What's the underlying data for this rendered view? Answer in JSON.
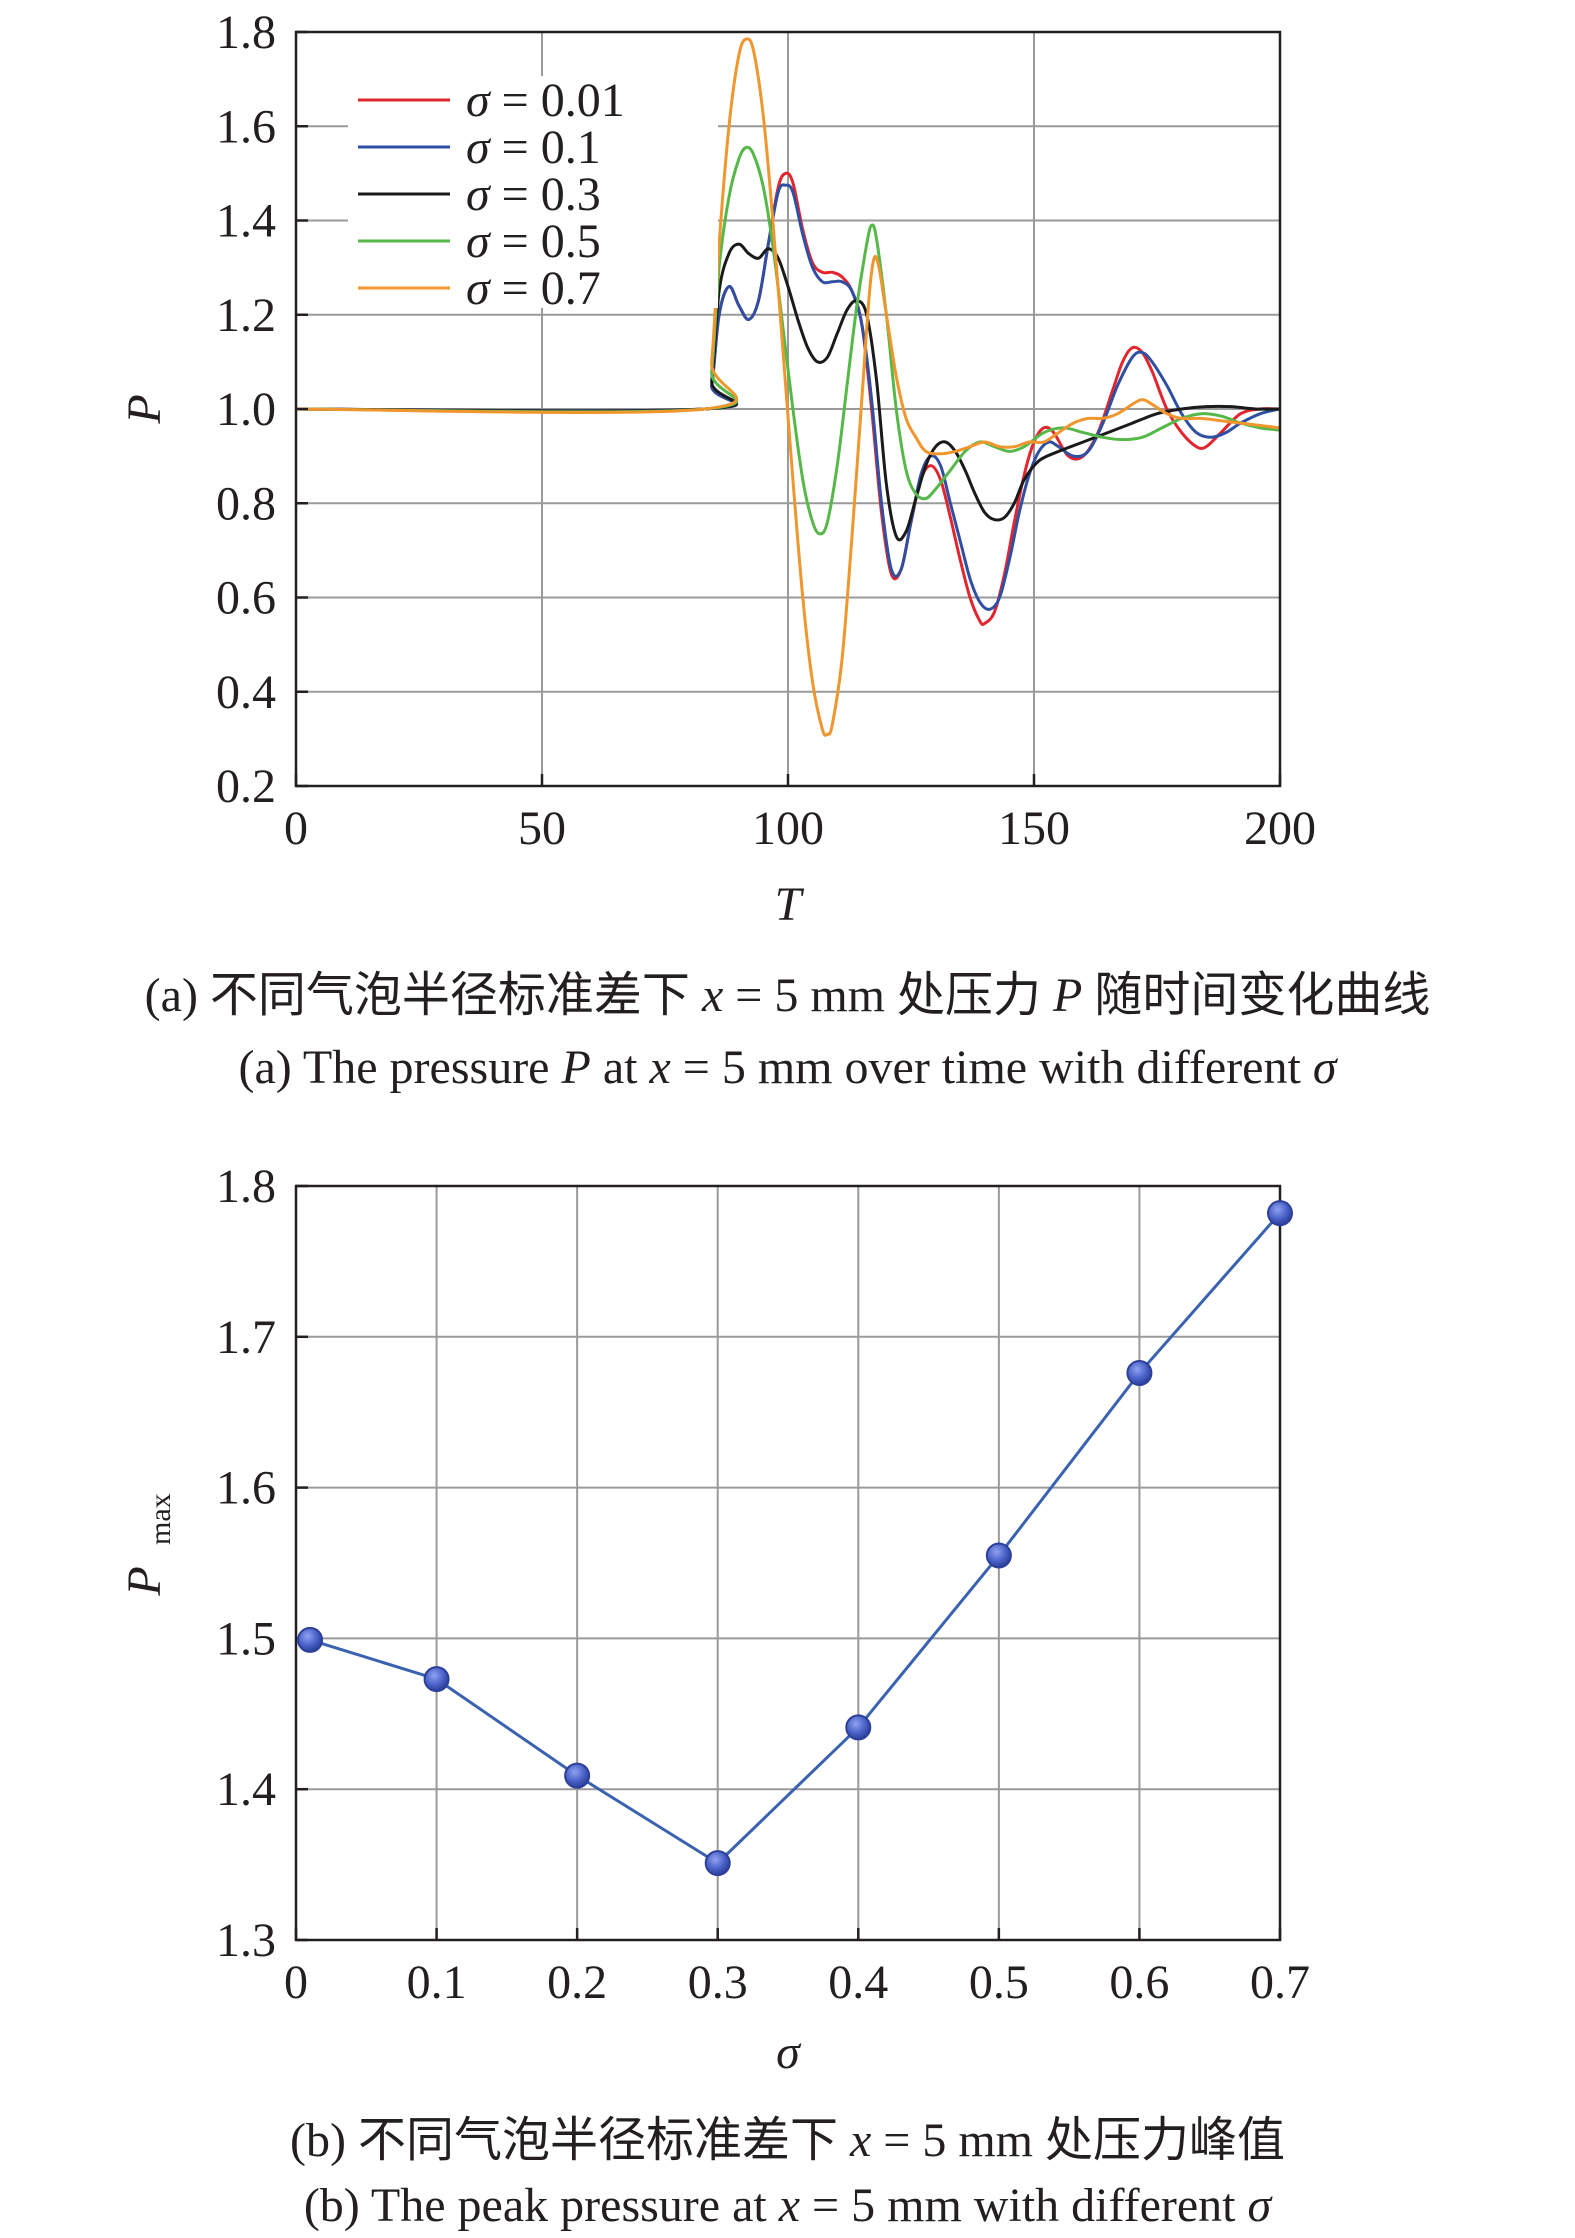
{
  "figure_a": {
    "caption_zh": "(a) 不同气泡半径标准差下 x = 5 mm 处压力 P 随时间变化曲线",
    "caption_en": "(a) The pressure P at x = 5 mm over time with different σ"
  },
  "figure_b": {
    "caption_zh": "(b) 不同气泡半径标准差下 x = 5 mm 处压力峰值",
    "caption_en": "(b) The peak pressure at x = 5 mm with different σ"
  },
  "chart_data": [
    {
      "type": "line",
      "xlabel": "T",
      "ylabel": "P",
      "xlim": [
        0,
        200
      ],
      "ylim": [
        0.2,
        1.8
      ],
      "xticks": [
        "0",
        "50",
        "100",
        "150",
        "200"
      ],
      "yticks": [
        "0.2",
        "0.4",
        "0.6",
        "0.8",
        "1.0",
        "1.2",
        "1.4",
        "1.6",
        "1.8"
      ],
      "grid": true,
      "legend_position": "top-left",
      "series": [
        {
          "name": "σ = 0.01",
          "color": "#e3252f",
          "points": [
            [
              0,
              1.0
            ],
            [
              83,
              1.0
            ],
            [
              84.5,
              1.05
            ],
            [
              86,
              1.2
            ],
            [
              88,
              1.26
            ],
            [
              90,
              1.22
            ],
            [
              92,
              1.19
            ],
            [
              94,
              1.23
            ],
            [
              96,
              1.35
            ],
            [
              98,
              1.47
            ],
            [
              99.5,
              1.5
            ],
            [
              101,
              1.48
            ],
            [
              103,
              1.38
            ],
            [
              105,
              1.31
            ],
            [
              107,
              1.29
            ],
            [
              109,
              1.29
            ],
            [
              111,
              1.28
            ],
            [
              113,
              1.25
            ],
            [
              115,
              1.18
            ],
            [
              117,
              1.0
            ],
            [
              119,
              0.78
            ],
            [
              121,
              0.65
            ],
            [
              123,
              0.66
            ],
            [
              125,
              0.76
            ],
            [
              127,
              0.85
            ],
            [
              129,
              0.88
            ],
            [
              131,
              0.85
            ],
            [
              133,
              0.77
            ],
            [
              135,
              0.68
            ],
            [
              137,
              0.6
            ],
            [
              139,
              0.55
            ],
            [
              140,
              0.545
            ],
            [
              142,
              0.57
            ],
            [
              144,
              0.65
            ],
            [
              146,
              0.76
            ],
            [
              148,
              0.86
            ],
            [
              150,
              0.93
            ],
            [
              152,
              0.96
            ],
            [
              154,
              0.95
            ],
            [
              157,
              0.9
            ],
            [
              160,
              0.9
            ],
            [
              163,
              0.95
            ],
            [
              166,
              1.04
            ],
            [
              168,
              1.1
            ],
            [
              170,
              1.13
            ],
            [
              172,
              1.12
            ],
            [
              174,
              1.08
            ],
            [
              177,
              1.0
            ],
            [
              180,
              0.95
            ],
            [
              183,
              0.92
            ],
            [
              185,
              0.92
            ],
            [
              188,
              0.95
            ],
            [
              192,
              0.99
            ],
            [
              196,
              1.0
            ],
            [
              200,
              1.0
            ]
          ]
        },
        {
          "name": "σ = 0.1",
          "color": "#2f4fa3",
          "points": [
            [
              0,
              1.0
            ],
            [
              83,
              1.0
            ],
            [
              84.5,
              1.05
            ],
            [
              86,
              1.2
            ],
            [
              88,
              1.26
            ],
            [
              90,
              1.22
            ],
            [
              92,
              1.19
            ],
            [
              94,
              1.23
            ],
            [
              96,
              1.35
            ],
            [
              98,
              1.46
            ],
            [
              99.5,
              1.475
            ],
            [
              101,
              1.46
            ],
            [
              103,
              1.37
            ],
            [
              105,
              1.3
            ],
            [
              107,
              1.27
            ],
            [
              109,
              1.27
            ],
            [
              111,
              1.27
            ],
            [
              113,
              1.25
            ],
            [
              115,
              1.18
            ],
            [
              117,
              1.02
            ],
            [
              119,
              0.8
            ],
            [
              121,
              0.66
            ],
            [
              123,
              0.66
            ],
            [
              125,
              0.76
            ],
            [
              127,
              0.86
            ],
            [
              129,
              0.9
            ],
            [
              131,
              0.88
            ],
            [
              133,
              0.8
            ],
            [
              135,
              0.72
            ],
            [
              137,
              0.64
            ],
            [
              139,
              0.59
            ],
            [
              141,
              0.575
            ],
            [
              143,
              0.6
            ],
            [
              145,
              0.68
            ],
            [
              147,
              0.78
            ],
            [
              149,
              0.86
            ],
            [
              151,
              0.91
            ],
            [
              153,
              0.93
            ],
            [
              155,
              0.92
            ],
            [
              158,
              0.9
            ],
            [
              161,
              0.91
            ],
            [
              164,
              0.97
            ],
            [
              167,
              1.05
            ],
            [
              170,
              1.11
            ],
            [
              172,
              1.12
            ],
            [
              174,
              1.1
            ],
            [
              177,
              1.05
            ],
            [
              180,
              0.99
            ],
            [
              183,
              0.95
            ],
            [
              186,
              0.94
            ],
            [
              189,
              0.95
            ],
            [
              192,
              0.97
            ],
            [
              196,
              0.99
            ],
            [
              200,
              1.0
            ]
          ]
        },
        {
          "name": "σ = 0.3",
          "color": "#1a1a1a",
          "points": [
            [
              0,
              1.0
            ],
            [
              83,
              1.0
            ],
            [
              84.5,
              1.06
            ],
            [
              86,
              1.25
            ],
            [
              88,
              1.33
            ],
            [
              90,
              1.35
            ],
            [
              92,
              1.33
            ],
            [
              94,
              1.32
            ],
            [
              96,
              1.34
            ],
            [
              98,
              1.32
            ],
            [
              100,
              1.26
            ],
            [
              102,
              1.19
            ],
            [
              104,
              1.13
            ],
            [
              106,
              1.1
            ],
            [
              108,
              1.11
            ],
            [
              110,
              1.16
            ],
            [
              112,
              1.21
            ],
            [
              114,
              1.23
            ],
            [
              116,
              1.2
            ],
            [
              118,
              1.06
            ],
            [
              120,
              0.84
            ],
            [
              122,
              0.73
            ],
            [
              124,
              0.74
            ],
            [
              126,
              0.81
            ],
            [
              128,
              0.88
            ],
            [
              130,
              0.92
            ],
            [
              132,
              0.93
            ],
            [
              134,
              0.91
            ],
            [
              136,
              0.87
            ],
            [
              138,
              0.82
            ],
            [
              140,
              0.78
            ],
            [
              142,
              0.765
            ],
            [
              144,
              0.77
            ],
            [
              146,
              0.8
            ],
            [
              148,
              0.85
            ],
            [
              151,
              0.89
            ],
            [
              155,
              0.91
            ],
            [
              160,
              0.93
            ],
            [
              165,
              0.95
            ],
            [
              170,
              0.97
            ],
            [
              175,
              0.99
            ],
            [
              180,
              1.0
            ],
            [
              185,
              1.005
            ],
            [
              190,
              1.005
            ],
            [
              195,
              1.0
            ],
            [
              200,
              1.0
            ]
          ]
        },
        {
          "name": "σ = 0.5",
          "color": "#56b848",
          "points": [
            [
              0,
              1.0
            ],
            [
              83,
              1.0
            ],
            [
              84.5,
              1.08
            ],
            [
              86,
              1.3
            ],
            [
              88,
              1.45
            ],
            [
              90,
              1.53
            ],
            [
              91.5,
              1.555
            ],
            [
              93,
              1.54
            ],
            [
              95,
              1.47
            ],
            [
              97,
              1.34
            ],
            [
              99,
              1.17
            ],
            [
              101,
              1.0
            ],
            [
              103,
              0.85
            ],
            [
              105,
              0.76
            ],
            [
              106.5,
              0.735
            ],
            [
              108,
              0.76
            ],
            [
              110,
              0.88
            ],
            [
              112,
              1.05
            ],
            [
              114,
              1.22
            ],
            [
              116,
              1.35
            ],
            [
              117,
              1.39
            ],
            [
              118,
              1.36
            ],
            [
              120,
              1.2
            ],
            [
              122,
              1.0
            ],
            [
              124,
              0.87
            ],
            [
              126,
              0.82
            ],
            [
              128,
              0.81
            ],
            [
              130,
              0.83
            ],
            [
              133,
              0.87
            ],
            [
              136,
              0.91
            ],
            [
              139,
              0.93
            ],
            [
              142,
              0.92
            ],
            [
              145,
              0.91
            ],
            [
              148,
              0.92
            ],
            [
              152,
              0.95
            ],
            [
              156,
              0.96
            ],
            [
              160,
              0.95
            ],
            [
              164,
              0.94
            ],
            [
              168,
              0.935
            ],
            [
              172,
              0.94
            ],
            [
              176,
              0.96
            ],
            [
              180,
              0.98
            ],
            [
              184,
              0.99
            ],
            [
              188,
              0.985
            ],
            [
              192,
              0.97
            ],
            [
              196,
              0.96
            ],
            [
              200,
              0.955
            ]
          ]
        },
        {
          "name": "σ = 0.7",
          "color": "#f0962e",
          "points": [
            [
              0,
              1.0
            ],
            [
              83,
              1.0
            ],
            [
              84.5,
              1.1
            ],
            [
              86,
              1.35
            ],
            [
              88,
              1.6
            ],
            [
              90,
              1.75
            ],
            [
              91.5,
              1.785
            ],
            [
              93,
              1.76
            ],
            [
              95,
              1.62
            ],
            [
              97,
              1.39
            ],
            [
              99,
              1.12
            ],
            [
              101,
              0.85
            ],
            [
              103,
              0.6
            ],
            [
              105,
              0.42
            ],
            [
              107,
              0.32
            ],
            [
              108,
              0.31
            ],
            [
              109,
              0.33
            ],
            [
              111,
              0.47
            ],
            [
              113,
              0.73
            ],
            [
              115,
              1.02
            ],
            [
              116.5,
              1.24
            ],
            [
              117.5,
              1.32
            ],
            [
              118.5,
              1.3
            ],
            [
              120,
              1.2
            ],
            [
              122,
              1.07
            ],
            [
              124,
              0.98
            ],
            [
              126,
              0.94
            ],
            [
              128,
              0.91
            ],
            [
              131,
              0.905
            ],
            [
              134,
              0.91
            ],
            [
              137,
              0.92
            ],
            [
              140,
              0.93
            ],
            [
              143,
              0.92
            ],
            [
              146,
              0.92
            ],
            [
              149,
              0.93
            ],
            [
              152,
              0.93
            ],
            [
              155,
              0.95
            ],
            [
              158,
              0.97
            ],
            [
              161,
              0.98
            ],
            [
              164,
              0.98
            ],
            [
              167,
              0.99
            ],
            [
              170,
              1.01
            ],
            [
              172,
              1.02
            ],
            [
              174,
              1.01
            ],
            [
              177,
              0.99
            ],
            [
              180,
              0.98
            ],
            [
              184,
              0.98
            ],
            [
              188,
              0.975
            ],
            [
              192,
              0.97
            ],
            [
              196,
              0.965
            ],
            [
              200,
              0.96
            ]
          ]
        }
      ]
    },
    {
      "type": "line",
      "xlabel": "σ",
      "ylabel": "P",
      "ylabel_subscript": "max",
      "xlim": [
        0,
        0.7
      ],
      "ylim": [
        1.3,
        1.8
      ],
      "xticks": [
        "0",
        "0.1",
        "0.2",
        "0.3",
        "0.4",
        "0.5",
        "0.6",
        "0.7"
      ],
      "yticks": [
        "1.3",
        "1.4",
        "1.5",
        "1.6",
        "1.7",
        "1.8"
      ],
      "grid": true,
      "markers": true,
      "color": "#3a62b0",
      "marker_color": "#4a62c8",
      "x": [
        0.01,
        0.1,
        0.2,
        0.3,
        0.4,
        0.5,
        0.6,
        0.7
      ],
      "values": [
        1.499,
        1.473,
        1.409,
        1.351,
        1.441,
        1.555,
        1.676,
        1.782
      ]
    }
  ]
}
